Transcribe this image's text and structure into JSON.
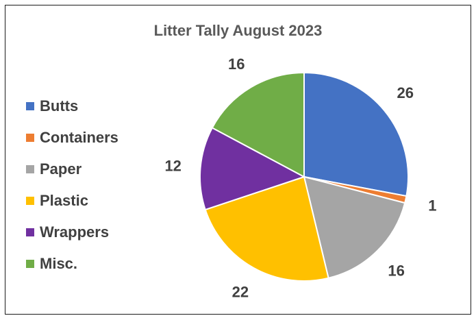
{
  "chart_data": {
    "type": "pie",
    "title": "Litter Tally August 2023",
    "categories": [
      "Butts",
      "Containers",
      "Paper",
      "Plastic",
      "Wrappers",
      "Misc."
    ],
    "values": [
      26,
      1,
      16,
      22,
      12,
      16
    ],
    "colors": [
      "#4472C4",
      "#ED7D31",
      "#A5A5A5",
      "#FFC000",
      "#7030A0",
      "#70AD47"
    ],
    "legend_position": "left",
    "data_labels": true
  }
}
